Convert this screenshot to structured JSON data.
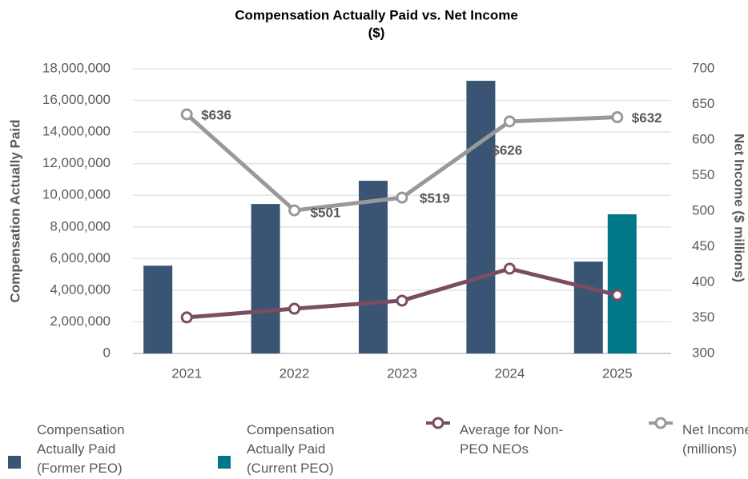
{
  "chart_data": {
    "type": "bar_line",
    "title": "Compensation Actually Paid vs. Net Income",
    "subtitle": "($)",
    "y_label": "Compensation Actually Paid",
    "y2_label": "Net Income ($ millions)",
    "categories": [
      "2021",
      "2022",
      "2023",
      "2024",
      "2025"
    ],
    "ylim": [
      0,
      18000000
    ],
    "yticks": [
      {
        "value": 0,
        "label": "0"
      },
      {
        "value": 2000000,
        "label": "2,000,000"
      },
      {
        "value": 4000000,
        "label": "4,000,000"
      },
      {
        "value": 6000000,
        "label": "6,000,000"
      },
      {
        "value": 8000000,
        "label": "8,000,000"
      },
      {
        "value": 10000000,
        "label": "10,000,000"
      },
      {
        "value": 12000000,
        "label": "12,000,000"
      },
      {
        "value": 14000000,
        "label": "14,000,000"
      },
      {
        "value": 16000000,
        "label": "16,000,000"
      },
      {
        "value": 18000000,
        "label": "18,000,000"
      }
    ],
    "y2lim": [
      300,
      700
    ],
    "y2ticks": [
      300,
      350,
      400,
      450,
      500,
      550,
      600,
      650,
      700
    ],
    "grid": true,
    "legend": "bottom",
    "series": [
      {
        "name": "Compensation Actually Paid (Former PEO)",
        "type": "bar",
        "color": "#3a5573",
        "values": [
          5550000,
          9450000,
          10920000,
          17240000,
          5810000
        ]
      },
      {
        "name": "Compensation Actually Paid (Current PEO)",
        "type": "bar",
        "color": "#00788a",
        "values": [
          null,
          null,
          null,
          null,
          8800000
        ]
      },
      {
        "name": "Average for Non-PEO NEOs",
        "type": "line",
        "color": "#7b4d60",
        "values": [
          2280000,
          2830000,
          3340000,
          5360000,
          3690000
        ]
      },
      {
        "name": "Net Income (millions)",
        "type": "line",
        "axis": "y2",
        "color": "#999999",
        "values": [
          636,
          501,
          519,
          626,
          632
        ],
        "value_labels": [
          "$636",
          "$501",
          "$519",
          "$626",
          "$632"
        ]
      }
    ]
  }
}
